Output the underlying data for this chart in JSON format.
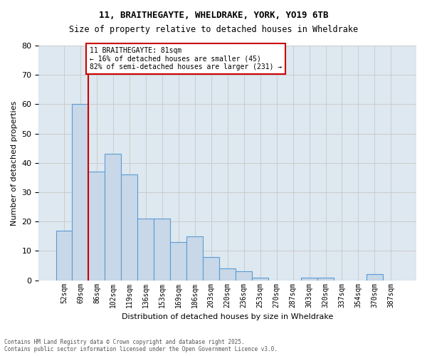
{
  "title1": "11, BRAITHEGAYTE, WHELDRAKE, YORK, YO19 6TB",
  "title2": "Size of property relative to detached houses in Wheldrake",
  "xlabel": "Distribution of detached houses by size in Wheldrake",
  "ylabel": "Number of detached properties",
  "bins": [
    "52sqm",
    "69sqm",
    "86sqm",
    "102sqm",
    "119sqm",
    "136sqm",
    "153sqm",
    "169sqm",
    "186sqm",
    "203sqm",
    "220sqm",
    "236sqm",
    "253sqm",
    "270sqm",
    "287sqm",
    "303sqm",
    "320sqm",
    "337sqm",
    "354sqm",
    "370sqm",
    "387sqm"
  ],
  "values": [
    17,
    60,
    37,
    43,
    36,
    21,
    21,
    13,
    15,
    8,
    4,
    3,
    1,
    0,
    0,
    1,
    1,
    0,
    0,
    2,
    0
  ],
  "bar_color": "#c8d8e8",
  "bar_edge_color": "#5b9bd5",
  "vline_x_pos": 1.5,
  "vline_color": "#cc0000",
  "ylim": [
    0,
    80
  ],
  "yticks": [
    0,
    10,
    20,
    30,
    40,
    50,
    60,
    70,
    80
  ],
  "grid_color": "#cccccc",
  "background_color": "#dde8f0",
  "annotation_text": "11 BRAITHEGAYTE: 81sqm\n← 16% of detached houses are smaller (45)\n82% of semi-detached houses are larger (231) →",
  "annotation_box_color": "#ffffff",
  "annotation_border_color": "#cc0000",
  "footer1": "Contains HM Land Registry data © Crown copyright and database right 2025.",
  "footer2": "Contains public sector information licensed under the Open Government Licence v3.0."
}
